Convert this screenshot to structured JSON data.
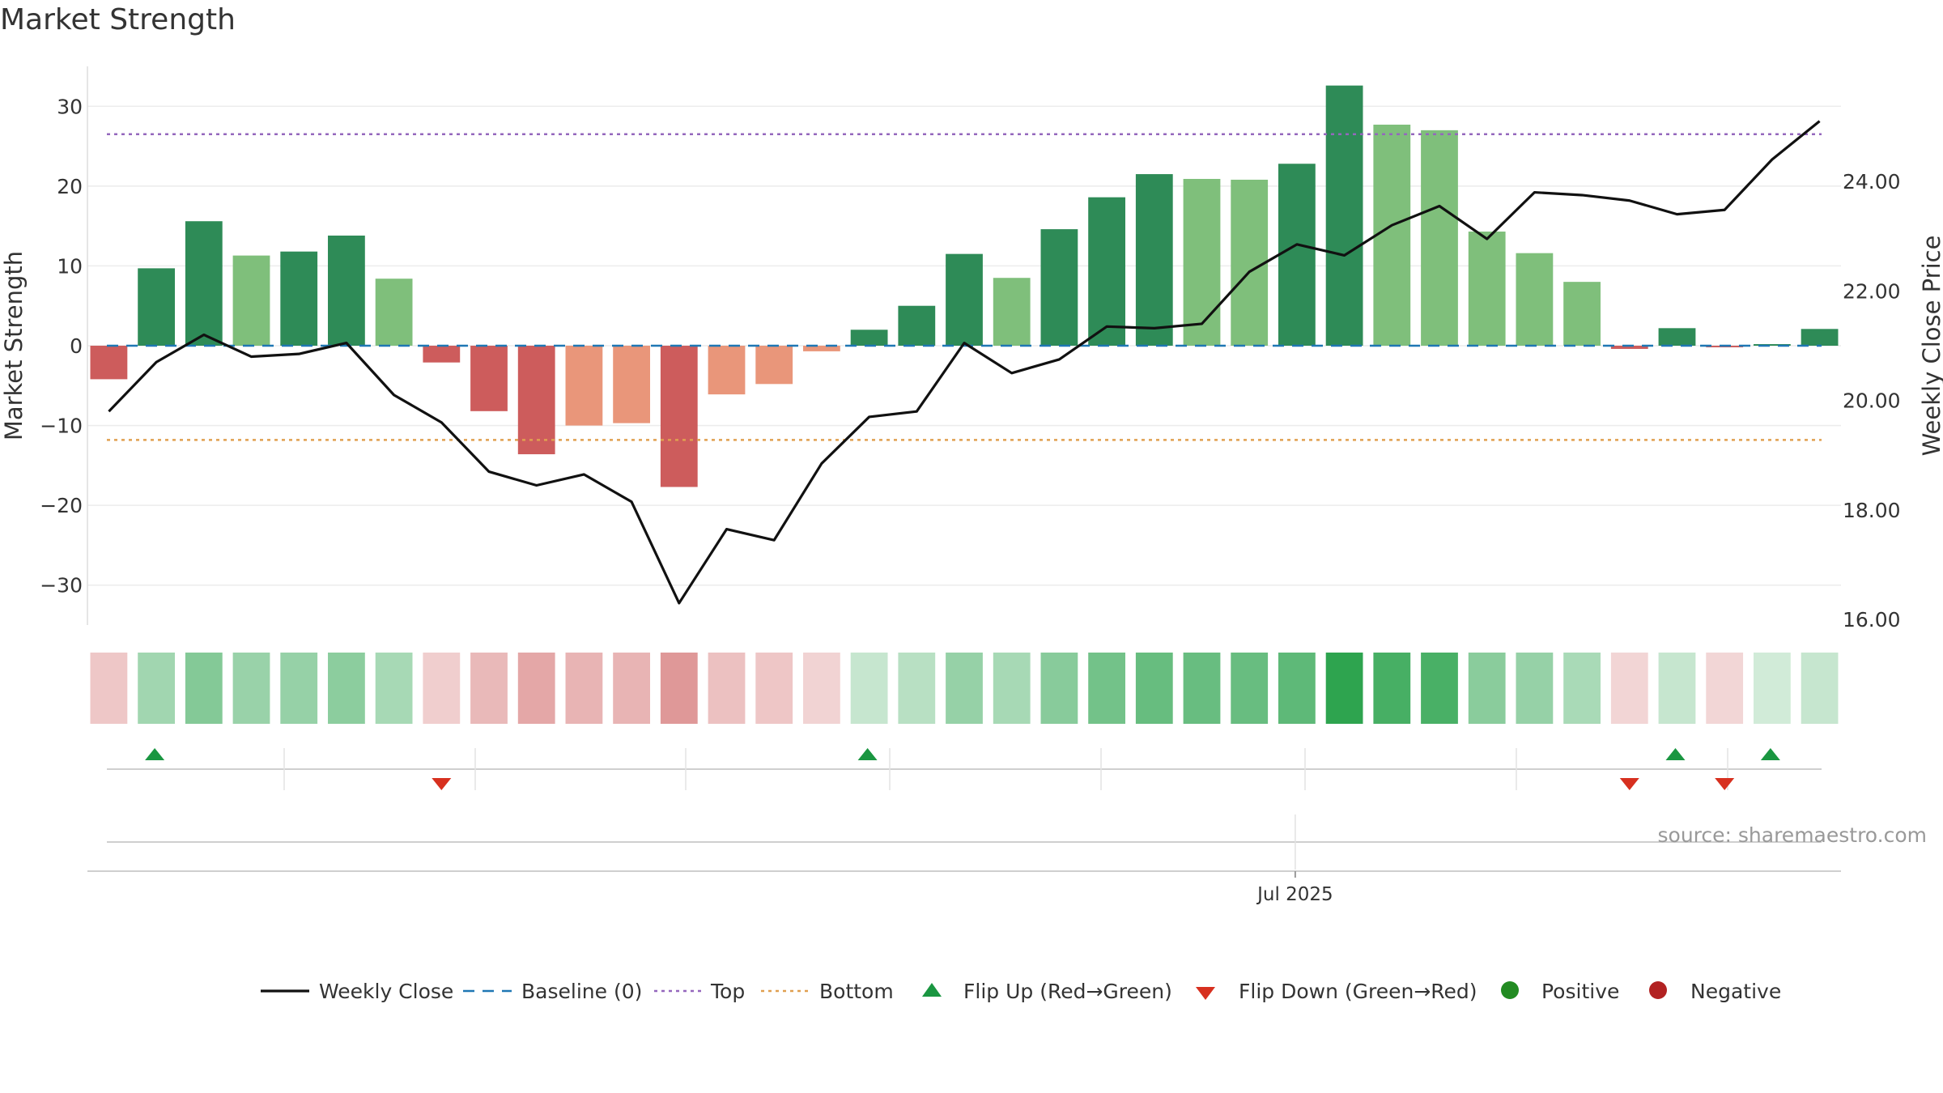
{
  "chart_data": {
    "type": "bar",
    "title": "Market Strength",
    "source": "source: sharemaestro.com",
    "left_axis": {
      "label": "Market Strength",
      "ticks": [
        30,
        20,
        10,
        0,
        -10,
        -20,
        -30
      ],
      "ylim": [
        -35,
        35
      ]
    },
    "right_axis": {
      "label": "Weekly Close Price",
      "ticks": [
        "24.00",
        "22.00",
        "20.00",
        "18.00",
        "16.00"
      ],
      "tick_values": [
        24,
        22,
        20,
        18,
        16
      ],
      "ylim": [
        15.9,
        26.1
      ]
    },
    "x_tick_label": "Jul 2025",
    "x_tick_index": 25,
    "top_line": 26.5,
    "bottom_line": -11.8,
    "weeks": [
      {
        "strength": -4.2,
        "price": 19.8
      },
      {
        "strength": 9.7,
        "price": 20.7
      },
      {
        "strength": 15.6,
        "price": 21.2
      },
      {
        "strength": 11.3,
        "price": 20.8
      },
      {
        "strength": 11.8,
        "price": 20.85
      },
      {
        "strength": 13.8,
        "price": 21.05
      },
      {
        "strength": 8.4,
        "price": 20.1
      },
      {
        "strength": -2.1,
        "price": 19.6
      },
      {
        "strength": -8.2,
        "price": 18.7
      },
      {
        "strength": -13.6,
        "price": 18.45
      },
      {
        "strength": -10.0,
        "price": 18.65
      },
      {
        "strength": -9.7,
        "price": 18.15
      },
      {
        "strength": -17.7,
        "price": 16.3
      },
      {
        "strength": -6.1,
        "price": 17.65
      },
      {
        "strength": -4.8,
        "price": 17.45
      },
      {
        "strength": -0.7,
        "price": 18.85
      },
      {
        "strength": 2.0,
        "price": 19.7
      },
      {
        "strength": 5.0,
        "price": 19.8
      },
      {
        "strength": 11.5,
        "price": 21.05
      },
      {
        "strength": 8.5,
        "price": 20.5
      },
      {
        "strength": 14.6,
        "price": 20.75
      },
      {
        "strength": 18.6,
        "price": 21.35
      },
      {
        "strength": 21.5,
        "price": 21.32
      },
      {
        "strength": 20.9,
        "price": 21.4
      },
      {
        "strength": 20.8,
        "price": 22.35
      },
      {
        "strength": 22.8,
        "price": 22.85
      },
      {
        "strength": 32.6,
        "price": 22.65
      },
      {
        "strength": 27.7,
        "price": 23.2
      },
      {
        "strength": 27.0,
        "price": 23.55
      },
      {
        "strength": 14.3,
        "price": 22.95
      },
      {
        "strength": 11.6,
        "price": 23.8
      },
      {
        "strength": 8.0,
        "price": 23.75
      },
      {
        "strength": -0.4,
        "price": 23.65
      },
      {
        "strength": 2.2,
        "price": 23.4
      },
      {
        "strength": -0.2,
        "price": 23.48
      },
      {
        "strength": 0.2,
        "price": 24.4
      },
      {
        "strength": 2.1,
        "price": 25.1
      }
    ],
    "flip_up_weeks": [
      1,
      16,
      33,
      35
    ],
    "flip_down_weeks": [
      7,
      32,
      34
    ],
    "legend": [
      "Weekly Close",
      "Baseline (0)",
      "Top",
      "Bottom",
      "Flip Up (Red→Green)",
      "Flip Down (Green→Red)",
      "Positive",
      "Negative"
    ],
    "colors": {
      "strong_green": "#2e8b57",
      "light_green": "#7fbf7b",
      "strong_red": "#cd5c5c",
      "light_red": "#e9967a",
      "price_line": "#111111",
      "baseline": "#1f77b4",
      "top": "#9467bd",
      "bottom": "#e0a050",
      "flip_up": "#1a9641",
      "flip_down": "#d7301f",
      "positive": "#228b22",
      "negative": "#b22222"
    }
  }
}
